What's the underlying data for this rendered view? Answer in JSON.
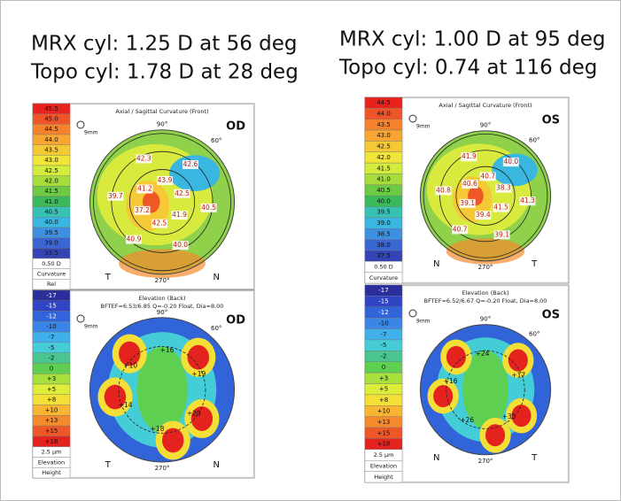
{
  "header": {
    "left": [
      "MRX cyl: 1.25 D at 56 deg",
      "Topo cyl: 1.78 D at 28 deg"
    ],
    "right": [
      "MRX cyl: 1.00 D at 95 deg",
      "Topo cyl: 0.74 at 116 deg"
    ]
  },
  "panels": [
    {
      "kind": "curvature",
      "title": "Axial / Sagittal Curvature (Front)",
      "eye": "OD",
      "zoom": "9mm",
      "degrees": [
        "90°",
        "60°",
        "270°"
      ],
      "orientation": [
        "T",
        "N"
      ],
      "scale": [
        "45.5",
        "45.0",
        "44.5",
        "44.0",
        "43.5",
        "43.0",
        "42.5",
        "42.0",
        "41.5",
        "41.0",
        "40.5",
        "40.0",
        "39.5",
        "39.0",
        "33.5"
      ],
      "scale_colors": [
        "#e8231e",
        "#f0552a",
        "#f6832c",
        "#f8a531",
        "#f5c935",
        "#f1e53a",
        "#d4ec3b",
        "#a6dc3c",
        "#6cca43",
        "#3cb95b",
        "#38c2b4",
        "#3ab7e0",
        "#3d8fdf",
        "#3a66d3",
        "#3345b5"
      ],
      "footer": [
        "0.50 D",
        "Curvature",
        "Rel"
      ],
      "values": [
        "42.5",
        "42.6",
        "43.9",
        "42.3",
        "41.2",
        "39.7",
        "37.2",
        "40.9",
        "42.5",
        "40.0",
        "41.9",
        "40.5"
      ]
    },
    {
      "kind": "elevation",
      "title": "Elevation (Back)",
      "subtitle": "BFTEF=6.53/6.85 Q=-0.20 Float, Dia=8.00",
      "eye": "OD",
      "zoom": "9mm",
      "degrees": [
        "90°",
        "60°",
        "270°"
      ],
      "orientation": [
        "T",
        "N"
      ],
      "scale": [
        "-17",
        "-15",
        "-12",
        "-10",
        "-7",
        "-5",
        "-2",
        "0",
        "+3",
        "+5",
        "+8",
        "+10",
        "+13",
        "+15",
        "+18"
      ],
      "scale_colors": [
        "#2a2f9c",
        "#2f45c4",
        "#3164d9",
        "#3a86e6",
        "#3fb0ec",
        "#44cdd7",
        "#4bc58f",
        "#5fcf52",
        "#a8e03c",
        "#dded3a",
        "#f4df36",
        "#f7b531",
        "#f58a2c",
        "#ef5727",
        "#e4231f"
      ],
      "footer": [
        "2.5 µm",
        "Elevation",
        "Height"
      ],
      "values": [
        "+19",
        "+16",
        "+10",
        "+14",
        "+18",
        "+20"
      ]
    },
    {
      "kind": "curvature",
      "title": "Axial / Sagittal Curvature (Front)",
      "eye": "OS",
      "zoom": "9mm",
      "degrees": [
        "90°",
        "60°",
        "270°"
      ],
      "orientation": [
        "N",
        "T"
      ],
      "scale": [
        "44.5",
        "44.0",
        "43.5",
        "43.0",
        "42.5",
        "42.0",
        "41.5",
        "41.0",
        "40.5",
        "40.0",
        "39.5",
        "39.0",
        "38.5",
        "38.0",
        "37.5"
      ],
      "scale_colors": [
        "#e8231e",
        "#f0552a",
        "#f6832c",
        "#f8a531",
        "#f5c935",
        "#f1e53a",
        "#d4ec3b",
        "#a6dc3c",
        "#6cca43",
        "#3cb95b",
        "#38c2b4",
        "#3ab7e0",
        "#3d8fdf",
        "#3a66d3",
        "#3345b5"
      ],
      "footer": [
        "0.50 D",
        "Curvature"
      ],
      "values": [
        "38.3",
        "40.0",
        "40.7",
        "41.9",
        "40.6",
        "40.8",
        "39.1",
        "40.7",
        "39.4",
        "39.1",
        "41.5",
        "41.3"
      ]
    },
    {
      "kind": "elevation",
      "title": "Elevation (Back)",
      "subtitle": "BFTEF=6.52/6.67 Q=-0.20 Float, Dia=8.00",
      "eye": "OS",
      "zoom": "9mm",
      "degrees": [
        "90°",
        "60°",
        "270°"
      ],
      "orientation": [
        "N",
        "T"
      ],
      "scale": [
        "-17",
        "-15",
        "-12",
        "-10",
        "-7",
        "-5",
        "-2",
        "0",
        "+3",
        "+5",
        "+8",
        "+10",
        "+13",
        "+15",
        "+18"
      ],
      "scale_colors": [
        "#2a2f9c",
        "#2f45c4",
        "#3164d9",
        "#3a86e6",
        "#3fb0ec",
        "#44cdd7",
        "#4bc58f",
        "#5fcf52",
        "#a8e03c",
        "#dded3a",
        "#f4df36",
        "#f7b531",
        "#f58a2c",
        "#ef5727",
        "#e4231f"
      ],
      "footer": [
        "2.5 µm",
        "Elevation",
        "Height"
      ],
      "values": [
        "+17",
        "+24",
        "+16",
        "+26",
        "+35"
      ]
    }
  ]
}
